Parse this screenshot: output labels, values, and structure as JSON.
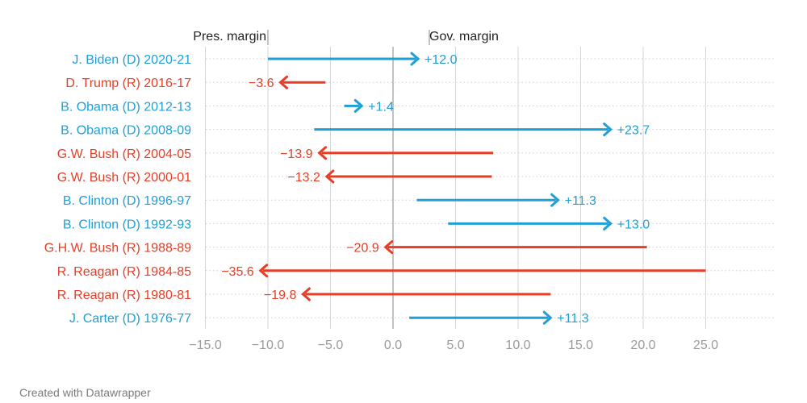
{
  "chart_data": {
    "type": "arrow-range",
    "colors": {
      "democrat": "#1f9fd6",
      "republican": "#e63e26",
      "grid": "#d6d6d6",
      "zero": "#9a9a9a",
      "tick": "#9a9a9a"
    },
    "annotations": {
      "pres_label": "Pres. margin",
      "gov_label": "Gov. margin"
    },
    "xticks": [
      -15,
      -10,
      -5,
      0,
      5,
      10,
      15,
      20,
      25
    ],
    "xtick_labels": [
      "−15.0",
      "−10.0",
      "−5.0",
      "0.0",
      "5.0",
      "10.0",
      "15.0",
      "20.0",
      "25.0"
    ],
    "xlim": [
      -15,
      30
    ],
    "grid": true,
    "rows": [
      {
        "label": "J. Biden (D) 2020-21",
        "party": "D",
        "pres": -10.0,
        "gov": 2.0,
        "change_label": "+12.0"
      },
      {
        "label": "D. Trump (R) 2016-17",
        "party": "R",
        "pres": -5.4,
        "gov": -9.0,
        "change_label": "−3.6"
      },
      {
        "label": "B. Obama (D) 2012-13",
        "party": "D",
        "pres": -3.9,
        "gov": -2.5,
        "change_label": "+1.4"
      },
      {
        "label": "B. Obama (D) 2008-09",
        "party": "D",
        "pres": -6.3,
        "gov": 17.4,
        "change_label": "+23.7"
      },
      {
        "label": "G.W. Bush (R) 2004-05",
        "party": "R",
        "pres": 8.0,
        "gov": -5.9,
        "change_label": "−13.9"
      },
      {
        "label": "G.W. Bush (R) 2000-01",
        "party": "R",
        "pres": 7.9,
        "gov": -5.3,
        "change_label": "−13.2"
      },
      {
        "label": "B. Clinton (D) 1996-97",
        "party": "D",
        "pres": 1.9,
        "gov": 13.2,
        "change_label": "+11.3"
      },
      {
        "label": "B. Clinton (D) 1992-93",
        "party": "D",
        "pres": 4.4,
        "gov": 17.4,
        "change_label": "+13.0"
      },
      {
        "label": "G.H.W. Bush (R) 1988-89",
        "party": "R",
        "pres": 20.3,
        "gov": -0.6,
        "change_label": "−20.9"
      },
      {
        "label": "R. Reagan (R) 1984-85",
        "party": "R",
        "pres": 25.0,
        "gov": -10.6,
        "change_label": "−35.6"
      },
      {
        "label": "R. Reagan (R) 1980-81",
        "party": "R",
        "pres": 12.6,
        "gov": -7.2,
        "change_label": "−19.8"
      },
      {
        "label": "J. Carter (D) 1976-77",
        "party": "D",
        "pres": 1.3,
        "gov": 12.6,
        "change_label": "+11.3"
      }
    ]
  },
  "footer": {
    "credit": "Created with Datawrapper"
  }
}
